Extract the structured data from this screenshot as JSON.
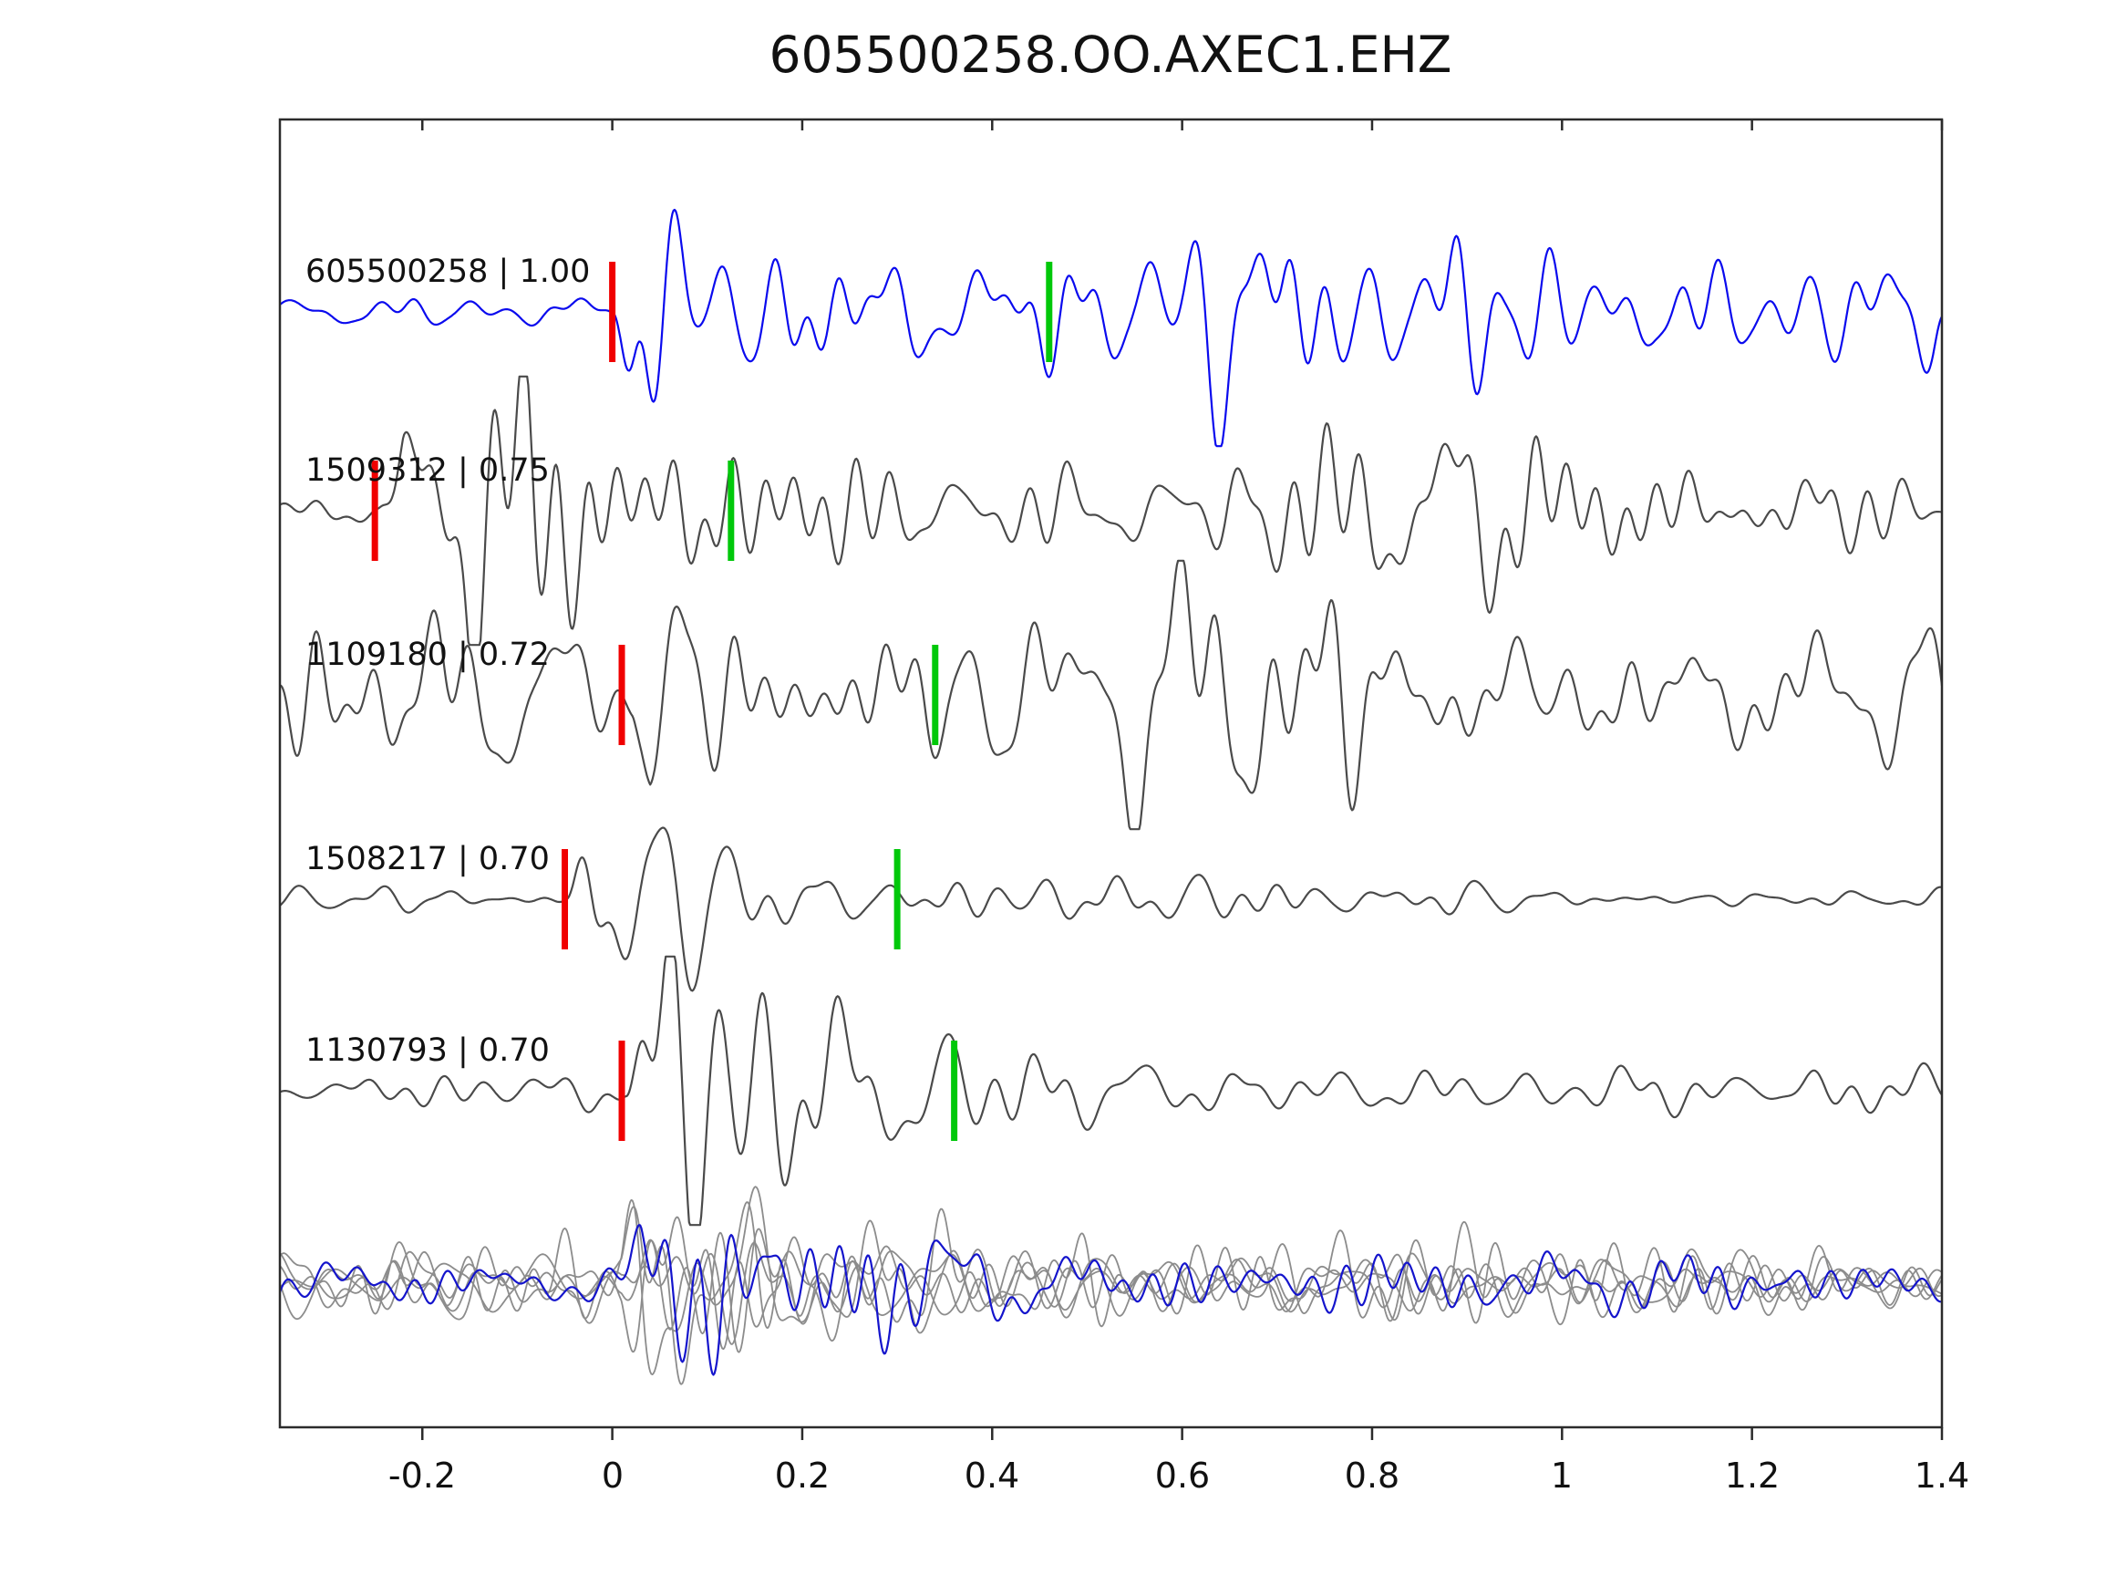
{
  "title": "605500258.OO.AXEC1.EHZ",
  "chart_data": {
    "type": "line",
    "title": "605500258.OO.AXEC1.EHZ",
    "xlabel": "",
    "ylabel": "",
    "xlim": [
      -0.35,
      1.4
    ],
    "x_ticks": [
      -0.2,
      0,
      0.2,
      0.4,
      0.6,
      0.8,
      1,
      1.2,
      1.4
    ],
    "x_tick_labels": [
      "-0.2",
      "0",
      "0.2",
      "0.4",
      "0.6",
      "0.8",
      "1",
      "1.2",
      "1.4"
    ],
    "grid": false,
    "legend": "none",
    "axis_color": "#2b2b2b",
    "pick_colors": {
      "red": "#f00000",
      "green": "#00c80a"
    },
    "traces": [
      {
        "id": "605500258",
        "correlation": "1.00",
        "label": "605500258 | 1.00",
        "color": "#0a0aee",
        "red_pick": 0.0,
        "green_pick": 0.46,
        "synth": {
          "seed": 11,
          "pre": 0.1,
          "burst": 1.05,
          "tail": 0.48,
          "decay": 0.55
        }
      },
      {
        "id": "1509312",
        "correlation": "0.75",
        "label": "1509312 | 0.75",
        "color": "#4a4a4a",
        "red_pick": -0.25,
        "green_pick": 0.125,
        "synth": {
          "seed": 27,
          "pre": 0.16,
          "burst": 1.1,
          "tail": 0.55,
          "decay": 0.5
        }
      },
      {
        "id": "1109180",
        "correlation": "0.72",
        "label": "1109180 | 0.72",
        "color": "#4a4a4a",
        "red_pick": 0.01,
        "green_pick": 0.34,
        "synth": {
          "seed": 35,
          "pre": 0.55,
          "burst": 1.1,
          "tail": 0.65,
          "decay": 0.6
        }
      },
      {
        "id": "1508217",
        "correlation": "0.70",
        "label": "1508217 | 0.70",
        "color": "#4a4a4a",
        "red_pick": -0.05,
        "green_pick": 0.3,
        "synth": {
          "seed": 41,
          "pre": 0.1,
          "burst": 1.15,
          "tail": 0.12,
          "decay": 0.28
        }
      },
      {
        "id": "1130793",
        "correlation": "0.70",
        "label": "1130793 | 0.70",
        "color": "#4a4a4a",
        "red_pick": 0.01,
        "green_pick": 0.36,
        "synth": {
          "seed": 58,
          "pre": 0.14,
          "burst": 1.1,
          "tail": 0.17,
          "decay": 0.22
        }
      }
    ],
    "overlay": {
      "description": "bottom stack of aligned matched waveforms",
      "gray_color": "#8c8c8c",
      "blue_color": "#1414cc",
      "gray_seeds": [
        71,
        72,
        73,
        74,
        75
      ],
      "blue_seed": 79,
      "synth": {
        "pick": 0.0,
        "pre": 0.35,
        "burst": 0.9,
        "tail": 0.3,
        "decay": 0.35
      }
    }
  }
}
